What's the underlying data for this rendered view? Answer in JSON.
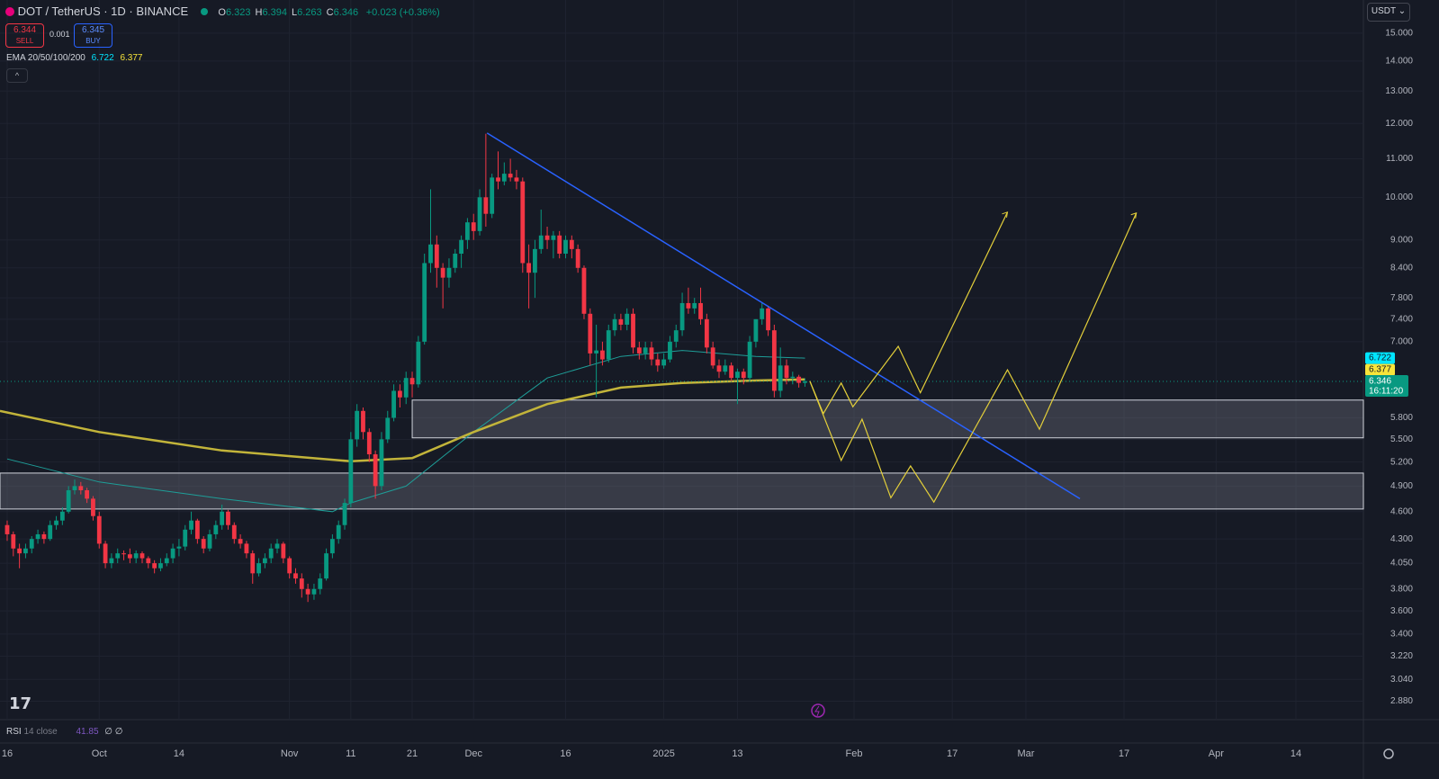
{
  "header": {
    "symbol": "DOT / TetherUS · 1D · BINANCE",
    "ohlc": [
      {
        "key": "O",
        "value": "6.323"
      },
      {
        "key": "H",
        "value": "6.394"
      },
      {
        "key": "L",
        "value": "6.263"
      },
      {
        "key": "C",
        "value": "6.346"
      }
    ],
    "change": "+0.023 (+0.36%)",
    "sell_price": "6.344",
    "sell": "SELL",
    "spread": "0.001",
    "buy_price": "6.345",
    "buy": "BUY",
    "indicator": {
      "name": "EMA 20/50/100/200",
      "values": [
        "6.722",
        "6.377"
      ]
    },
    "currency": "USDT",
    "rsi": {
      "name": "RSI",
      "params": "14 close",
      "value": "41.85",
      "extra": "∅ ∅"
    },
    "countdown": "16:11:20"
  },
  "chart_data": {
    "type": "candlestick",
    "log_scale": true,
    "grid": true,
    "up_color": "#089981",
    "down_color": "#f23645",
    "xlim": [
      -1.17,
      221
    ],
    "ylim": [
      2.752,
      16.28
    ],
    "xticks": [
      {
        "value": 0,
        "label": "16"
      },
      {
        "value": 15,
        "label": "Oct"
      },
      {
        "value": 28,
        "label": "14"
      },
      {
        "value": 46,
        "label": "Nov"
      },
      {
        "value": 56,
        "label": "11"
      },
      {
        "value": 66,
        "label": "21"
      },
      {
        "value": 76,
        "label": "Dec"
      },
      {
        "value": 91,
        "label": "16"
      },
      {
        "value": 107,
        "label": "2025"
      },
      {
        "value": 119,
        "label": "13"
      },
      {
        "value": 138,
        "label": "Feb"
      },
      {
        "value": 154,
        "label": "17"
      },
      {
        "value": 166,
        "label": "Mar"
      },
      {
        "value": 182,
        "label": "17"
      },
      {
        "value": 197,
        "label": "Apr"
      },
      {
        "value": 210,
        "label": "14"
      }
    ],
    "yticks": [
      {
        "value": 15,
        "label": "15.000"
      },
      {
        "value": 14,
        "label": "14.000"
      },
      {
        "value": 13,
        "label": "13.000"
      },
      {
        "value": 12,
        "label": "12.000"
      },
      {
        "value": 11,
        "label": "11.000"
      },
      {
        "value": 10,
        "label": "10.000"
      },
      {
        "value": 9,
        "label": "9.000"
      },
      {
        "value": 8.4,
        "label": "8.400"
      },
      {
        "value": 7.8,
        "label": "7.800"
      },
      {
        "value": 7.4,
        "label": "7.400"
      },
      {
        "value": 7,
        "label": "7.000"
      },
      {
        "value": 5.8,
        "label": "5.800"
      },
      {
        "value": 5.5,
        "label": "5.500"
      },
      {
        "value": 5.2,
        "label": "5.200"
      },
      {
        "value": 4.9,
        "label": "4.900"
      },
      {
        "value": 4.6,
        "label": "4.600"
      },
      {
        "value": 4.3,
        "label": "4.300"
      },
      {
        "value": 4.05,
        "label": "4.050"
      },
      {
        "value": 3.8,
        "label": "3.800"
      },
      {
        "value": 3.6,
        "label": "3.600"
      },
      {
        "value": 3.4,
        "label": "3.400"
      },
      {
        "value": 3.22,
        "label": "3.220"
      },
      {
        "value": 3.04,
        "label": "3.040"
      },
      {
        "value": 2.88,
        "label": "2.880"
      }
    ],
    "x": [
      0,
      1,
      2,
      3,
      4,
      5,
      6,
      7,
      8,
      9,
      10,
      11,
      12,
      13,
      14,
      15,
      16,
      17,
      18,
      19,
      20,
      21,
      22,
      23,
      24,
      25,
      26,
      27,
      28,
      29,
      30,
      31,
      32,
      33,
      34,
      35,
      36,
      37,
      38,
      39,
      40,
      41,
      42,
      43,
      44,
      45,
      46,
      47,
      48,
      49,
      50,
      51,
      52,
      53,
      54,
      55,
      56,
      57,
      58,
      59,
      60,
      61,
      62,
      63,
      64,
      65,
      66,
      67,
      68,
      69,
      70,
      71,
      72,
      73,
      74,
      75,
      76,
      77,
      78,
      79,
      80,
      81,
      82,
      83,
      84,
      85,
      86,
      87,
      88,
      89,
      90,
      91,
      92,
      93,
      94,
      95,
      96,
      97,
      98,
      99,
      100,
      101,
      102,
      103,
      104,
      105,
      106,
      107,
      108,
      109,
      110,
      111,
      112,
      113,
      114,
      115,
      116,
      117,
      118,
      119,
      120,
      121,
      122,
      123,
      124,
      125,
      126,
      127,
      128,
      129,
      130
    ],
    "candles": [
      [
        4.45,
        4.5,
        4.28,
        4.35
      ],
      [
        4.35,
        4.38,
        4.12,
        4.2
      ],
      [
        4.2,
        4.25,
        4.0,
        4.15
      ],
      [
        4.15,
        4.25,
        4.1,
        4.2
      ],
      [
        4.2,
        4.33,
        4.15,
        4.3
      ],
      [
        4.3,
        4.4,
        4.25,
        4.35
      ],
      [
        4.35,
        4.38,
        4.25,
        4.3
      ],
      [
        4.3,
        4.5,
        4.28,
        4.45
      ],
      [
        4.45,
        4.55,
        4.4,
        4.5
      ],
      [
        4.5,
        4.65,
        4.45,
        4.6
      ],
      [
        4.6,
        4.9,
        4.58,
        4.85
      ],
      [
        4.85,
        4.98,
        4.8,
        4.9
      ],
      [
        4.9,
        4.95,
        4.8,
        4.85
      ],
      [
        4.85,
        4.88,
        4.7,
        4.75
      ],
      [
        4.75,
        4.78,
        4.5,
        4.55
      ],
      [
        4.55,
        4.6,
        4.2,
        4.25
      ],
      [
        4.25,
        4.28,
        4.0,
        4.05
      ],
      [
        4.05,
        4.15,
        4.0,
        4.1
      ],
      [
        4.1,
        4.2,
        4.05,
        4.15
      ],
      [
        4.15,
        4.18,
        4.08,
        4.14
      ],
      [
        4.14,
        4.2,
        4.05,
        4.1
      ],
      [
        4.1,
        4.18,
        4.05,
        4.15
      ],
      [
        4.15,
        4.17,
        4.05,
        4.1
      ],
      [
        4.1,
        4.12,
        4.0,
        4.05
      ],
      [
        4.05,
        4.08,
        3.95,
        4.0
      ],
      [
        4.0,
        4.1,
        3.97,
        4.05
      ],
      [
        4.05,
        4.15,
        4.02,
        4.1
      ],
      [
        4.1,
        4.25,
        4.05,
        4.2
      ],
      [
        4.2,
        4.3,
        4.12,
        4.22
      ],
      [
        4.22,
        4.45,
        4.18,
        4.4
      ],
      [
        4.4,
        4.6,
        4.35,
        4.5
      ],
      [
        4.5,
        4.52,
        4.25,
        4.3
      ],
      [
        4.3,
        4.33,
        4.15,
        4.2
      ],
      [
        4.2,
        4.4,
        4.17,
        4.35
      ],
      [
        4.35,
        4.5,
        4.3,
        4.45
      ],
      [
        4.45,
        4.68,
        4.4,
        4.6
      ],
      [
        4.6,
        4.62,
        4.4,
        4.45
      ],
      [
        4.45,
        4.48,
        4.25,
        4.3
      ],
      [
        4.3,
        4.35,
        4.2,
        4.25
      ],
      [
        4.25,
        4.28,
        4.1,
        4.15
      ],
      [
        4.15,
        4.18,
        3.85,
        3.95
      ],
      [
        3.95,
        4.1,
        3.92,
        4.05
      ],
      [
        4.05,
        4.15,
        4.0,
        4.1
      ],
      [
        4.1,
        4.25,
        4.05,
        4.2
      ],
      [
        4.2,
        4.3,
        4.15,
        4.25
      ],
      [
        4.25,
        4.27,
        4.05,
        4.1
      ],
      [
        4.1,
        4.12,
        3.9,
        3.95
      ],
      [
        3.95,
        4.0,
        3.85,
        3.9
      ],
      [
        3.9,
        3.95,
        3.72,
        3.8
      ],
      [
        3.8,
        3.85,
        3.68,
        3.75
      ],
      [
        3.75,
        3.85,
        3.7,
        3.8
      ],
      [
        3.8,
        3.95,
        3.75,
        3.9
      ],
      [
        3.9,
        4.2,
        3.88,
        4.15
      ],
      [
        4.15,
        4.35,
        4.1,
        4.3
      ],
      [
        4.3,
        4.5,
        4.25,
        4.45
      ],
      [
        4.45,
        4.75,
        4.4,
        4.7
      ],
      [
        4.7,
        5.6,
        4.65,
        5.5
      ],
      [
        5.5,
        6.0,
        5.4,
        5.9
      ],
      [
        5.9,
        5.95,
        5.5,
        5.6
      ],
      [
        5.6,
        5.65,
        5.2,
        5.3
      ],
      [
        5.3,
        5.35,
        4.75,
        4.9
      ],
      [
        4.9,
        5.6,
        4.85,
        5.5
      ],
      [
        5.5,
        5.9,
        5.45,
        5.8
      ],
      [
        5.8,
        6.3,
        5.75,
        6.2
      ],
      [
        6.2,
        6.3,
        5.95,
        6.1
      ],
      [
        6.1,
        6.5,
        6.0,
        6.4
      ],
      [
        6.4,
        6.5,
        6.1,
        6.3
      ],
      [
        6.3,
        7.1,
        6.25,
        7.0
      ],
      [
        7.0,
        8.7,
        6.95,
        8.5
      ],
      [
        8.5,
        10.2,
        8.3,
        8.9
      ],
      [
        8.9,
        9.1,
        8.0,
        8.4
      ],
      [
        8.4,
        8.5,
        7.6,
        8.2
      ],
      [
        8.2,
        8.6,
        8.0,
        8.4
      ],
      [
        8.4,
        8.8,
        8.3,
        8.7
      ],
      [
        8.7,
        9.1,
        8.4,
        9.0
      ],
      [
        9.0,
        9.5,
        8.8,
        9.4
      ],
      [
        9.4,
        9.6,
        9.0,
        9.2
      ],
      [
        9.2,
        10.2,
        9.1,
        10.0
      ],
      [
        10.0,
        11.7,
        9.3,
        9.6
      ],
      [
        9.6,
        10.6,
        9.5,
        10.5
      ],
      [
        10.5,
        11.2,
        10.2,
        10.4
      ],
      [
        10.4,
        10.9,
        10.3,
        10.6
      ],
      [
        10.6,
        11.0,
        10.4,
        10.5
      ],
      [
        10.5,
        10.7,
        10.2,
        10.4
      ],
      [
        10.4,
        10.5,
        8.3,
        8.5
      ],
      [
        8.5,
        8.9,
        7.6,
        8.3
      ],
      [
        8.3,
        9.0,
        7.8,
        8.8
      ],
      [
        8.8,
        9.7,
        8.7,
        9.1
      ],
      [
        9.1,
        9.3,
        8.8,
        9.0
      ],
      [
        9.0,
        9.2,
        8.6,
        9.1
      ],
      [
        9.1,
        9.2,
        8.6,
        8.7
      ],
      [
        8.7,
        9.1,
        8.6,
        9.0
      ],
      [
        9.0,
        9.1,
        8.6,
        8.8
      ],
      [
        8.8,
        8.9,
        8.3,
        8.4
      ],
      [
        8.4,
        8.45,
        7.4,
        7.5
      ],
      [
        7.5,
        7.6,
        6.6,
        6.8
      ],
      [
        6.8,
        7.3,
        6.1,
        6.85
      ],
      [
        6.85,
        7.0,
        6.6,
        6.7
      ],
      [
        6.7,
        7.3,
        6.65,
        7.2
      ],
      [
        7.2,
        7.5,
        7.1,
        7.4
      ],
      [
        7.4,
        7.5,
        7.2,
        7.3
      ],
      [
        7.3,
        7.6,
        7.2,
        7.5
      ],
      [
        7.5,
        7.6,
        6.8,
        6.9
      ],
      [
        6.9,
        7.0,
        6.7,
        6.8
      ],
      [
        6.8,
        7.0,
        6.7,
        6.9
      ],
      [
        6.9,
        7.0,
        6.6,
        6.7
      ],
      [
        6.7,
        6.8,
        6.5,
        6.6
      ],
      [
        6.6,
        6.8,
        6.55,
        6.7
      ],
      [
        6.7,
        7.1,
        6.65,
        7.0
      ],
      [
        7.0,
        7.3,
        6.9,
        7.2
      ],
      [
        7.2,
        7.9,
        7.1,
        7.7
      ],
      [
        7.7,
        8.0,
        7.5,
        7.6
      ],
      [
        7.6,
        7.8,
        7.5,
        7.7
      ],
      [
        7.7,
        8.0,
        7.3,
        7.4
      ],
      [
        7.4,
        7.5,
        6.8,
        6.9
      ],
      [
        6.9,
        7.0,
        6.55,
        6.6
      ],
      [
        6.6,
        6.7,
        6.4,
        6.5
      ],
      [
        6.5,
        6.7,
        6.45,
        6.6
      ],
      [
        6.6,
        6.65,
        6.35,
        6.4
      ],
      [
        6.4,
        6.55,
        6.0,
        6.5
      ],
      [
        6.5,
        6.55,
        6.3,
        6.4
      ],
      [
        6.4,
        7.1,
        6.35,
        7.0
      ],
      [
        7.0,
        7.4,
        6.9,
        7.4
      ],
      [
        7.4,
        7.7,
        7.3,
        7.6
      ],
      [
        7.6,
        7.65,
        7.1,
        7.2
      ],
      [
        7.2,
        7.3,
        6.1,
        6.2
      ],
      [
        6.2,
        6.9,
        6.1,
        6.6
      ],
      [
        6.6,
        6.7,
        6.3,
        6.4
      ],
      [
        6.4,
        6.5,
        6.3,
        6.42
      ],
      [
        6.42,
        6.45,
        6.25,
        6.323
      ],
      [
        6.323,
        6.394,
        6.263,
        6.346
      ]
    ],
    "ema_lines": [
      {
        "color": "#1e9e98",
        "label_color": "#00e5ff",
        "x": [
          0,
          15,
          35,
          53,
          56,
          65,
          76,
          88,
          100,
          110,
          122,
          130
        ],
        "values": [
          5.24,
          4.95,
          4.75,
          4.6,
          4.7,
          4.9,
          5.6,
          6.4,
          6.75,
          6.85,
          6.75,
          6.722
        ]
      },
      {
        "color": "#c2b43a",
        "label_color": "#f7e43a",
        "x": [
          -1.17,
          15,
          35,
          56,
          66,
          76,
          88,
          100,
          110,
          122,
          130
        ],
        "values": [
          5.9,
          5.6,
          5.35,
          5.21,
          5.25,
          5.6,
          6.0,
          6.25,
          6.32,
          6.36,
          6.377
        ]
      }
    ],
    "last_price": 6.346,
    "last_color": "#089981",
    "trendline": {
      "color": "#2962ff",
      "x": [
        78.2,
        174.8
      ],
      "values": [
        11.72,
        4.75
      ]
    },
    "zones": [
      {
        "from": 66,
        "top": 6.06,
        "bottom": 5.52
      },
      {
        "top": 5.06,
        "bottom": 4.63
      }
    ],
    "projections": {
      "color": "#e3cf3a",
      "paths": [
        {
          "x": [
            130.8,
            133,
            135.9,
            137.8,
            145.2,
            148.8,
            163
          ],
          "values": [
            6.35,
            5.86,
            6.32,
            5.96,
            6.92,
            6.17,
            9.64
          ]
        },
        {
          "x": [
            130.8,
            135.9,
            139.3,
            144,
            147.2,
            151,
            163,
            168.2,
            184
          ],
          "values": [
            6.35,
            5.22,
            5.78,
            4.76,
            5.15,
            4.71,
            6.53,
            5.64,
            9.62
          ]
        }
      ]
    }
  }
}
